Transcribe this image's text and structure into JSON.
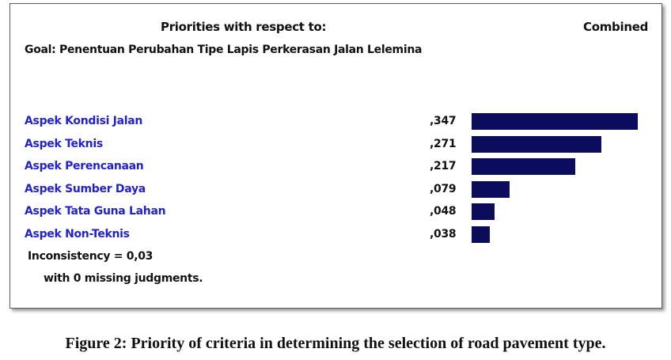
{
  "header": {
    "title": "Priorities with respect to:",
    "combined": "Combined",
    "goal": "Goal: Penentuan Perubahan Tipe Lapis Perkerasan Jalan Lelemina"
  },
  "chart_data": {
    "type": "bar",
    "orientation": "horizontal",
    "categories": [
      "Aspek Kondisi Jalan",
      "Aspek Teknis",
      "Aspek Perencanaan",
      "Aspek Sumber Daya",
      "Aspek Tata Guna Lahan",
      "Aspek Non-Teknis"
    ],
    "values": [
      0.347,
      0.271,
      0.217,
      0.079,
      0.048,
      0.038
    ],
    "value_labels": [
      ",347",
      ",271",
      ",217",
      ",079",
      ",048",
      ",038"
    ],
    "bar_color": "#0c0c5c",
    "label_color": "#2222cc"
  },
  "footer": {
    "inconsistency": "Inconsistency = 0,03",
    "missing": "with 0  missing judgments."
  },
  "caption": "Figure 2: Priority of criteria in determining the selection of road pavement type."
}
